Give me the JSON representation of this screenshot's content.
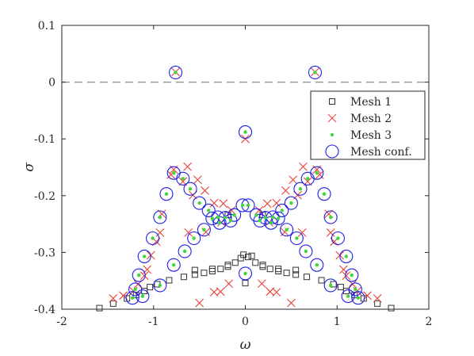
{
  "chart_data": {
    "type": "scatter",
    "xlabel": "ω",
    "ylabel": "σ",
    "xlim": [
      -2,
      2
    ],
    "ylim": [
      -0.4,
      0.1
    ],
    "x_ticks": [
      "-2",
      "-1",
      "0",
      "1",
      "2"
    ],
    "y_ticks": [
      "-0.4",
      "-0.3",
      "-0.2",
      "-0.1",
      "0",
      "0.1"
    ],
    "x_tick_values": [
      -2,
      -1,
      0,
      1,
      2
    ],
    "y_tick_values": [
      -0.4,
      -0.3,
      -0.2,
      -0.1,
      0,
      0.1
    ],
    "reference_line": {
      "y": 0,
      "style": "dashed",
      "color": "#8c8c8c"
    },
    "grid": false,
    "legend_position": "top-right",
    "series": [
      {
        "name": "Mesh 1",
        "marker": "square",
        "color": "#333333",
        "points": [
          [
            -1.59,
            -0.398
          ],
          [
            -1.44,
            -0.39
          ],
          [
            -1.29,
            -0.381
          ],
          [
            -1.19,
            -0.375
          ],
          [
            -1.1,
            -0.368
          ],
          [
            -1.04,
            -0.361
          ],
          [
            -0.96,
            -0.356
          ],
          [
            -0.83,
            -0.349
          ],
          [
            -0.67,
            -0.343
          ],
          [
            -0.55,
            -0.339
          ],
          [
            -0.45,
            -0.336
          ],
          [
            -0.36,
            -0.333
          ],
          [
            -0.27,
            -0.329
          ],
          [
            -0.19,
            -0.325
          ],
          [
            -0.11,
            -0.318
          ],
          [
            -0.05,
            -0.31
          ],
          [
            -0.02,
            -0.304
          ],
          [
            0.03,
            -0.308
          ],
          [
            0.07,
            -0.306
          ],
          [
            -0.55,
            -0.331
          ],
          [
            -0.36,
            -0.329
          ],
          [
            -0.19,
            -0.322
          ],
          [
            0.0,
            -0.354
          ],
          [
            0.19,
            -0.322
          ],
          [
            0.36,
            -0.329
          ],
          [
            0.55,
            -0.331
          ],
          [
            0.11,
            -0.318
          ],
          [
            0.19,
            -0.325
          ],
          [
            0.27,
            -0.329
          ],
          [
            0.36,
            -0.333
          ],
          [
            0.45,
            -0.336
          ],
          [
            0.55,
            -0.339
          ],
          [
            0.67,
            -0.343
          ],
          [
            0.83,
            -0.349
          ],
          [
            0.96,
            -0.356
          ],
          [
            1.04,
            -0.361
          ],
          [
            1.1,
            -0.368
          ],
          [
            1.19,
            -0.375
          ],
          [
            1.29,
            -0.381
          ],
          [
            1.44,
            -0.39
          ],
          [
            1.59,
            -0.398
          ],
          [
            -0.19,
            -0.234
          ],
          [
            0.19,
            -0.234
          ]
        ]
      },
      {
        "name": "Mesh 2",
        "marker": "x",
        "color": "#e8403a",
        "points": [
          [
            0.76,
            0.018
          ],
          [
            -0.76,
            0.018
          ],
          [
            0.0,
            -0.1
          ],
          [
            -0.78,
            -0.154
          ],
          [
            -0.63,
            -0.149
          ],
          [
            -0.81,
            -0.163
          ],
          [
            -0.52,
            -0.172
          ],
          [
            -0.68,
            -0.175
          ],
          [
            -0.44,
            -0.191
          ],
          [
            -0.57,
            -0.199
          ],
          [
            -0.34,
            -0.213
          ],
          [
            -0.24,
            -0.214
          ],
          [
            -0.15,
            -0.226
          ],
          [
            -0.91,
            -0.232
          ],
          [
            -0.93,
            -0.265
          ],
          [
            -0.62,
            -0.265
          ],
          [
            -0.43,
            -0.264
          ],
          [
            -0.97,
            -0.281
          ],
          [
            -1.03,
            -0.305
          ],
          [
            -1.07,
            -0.33
          ],
          [
            -1.1,
            -0.341
          ],
          [
            -1.17,
            -0.356
          ],
          [
            -1.22,
            -0.368
          ],
          [
            -1.33,
            -0.376
          ],
          [
            -1.44,
            -0.381
          ],
          [
            -0.5,
            -0.389
          ],
          [
            -0.34,
            -0.37
          ],
          [
            -0.27,
            -0.369
          ],
          [
            -0.18,
            -0.355
          ],
          [
            0.78,
            -0.154
          ],
          [
            0.63,
            -0.149
          ],
          [
            0.81,
            -0.163
          ],
          [
            0.52,
            -0.172
          ],
          [
            0.68,
            -0.175
          ],
          [
            0.44,
            -0.191
          ],
          [
            0.57,
            -0.199
          ],
          [
            0.34,
            -0.213
          ],
          [
            0.24,
            -0.214
          ],
          [
            0.15,
            -0.226
          ],
          [
            0.91,
            -0.232
          ],
          [
            0.93,
            -0.265
          ],
          [
            0.62,
            -0.265
          ],
          [
            0.43,
            -0.264
          ],
          [
            0.97,
            -0.281
          ],
          [
            1.03,
            -0.305
          ],
          [
            1.07,
            -0.33
          ],
          [
            1.1,
            -0.341
          ],
          [
            1.17,
            -0.356
          ],
          [
            1.22,
            -0.368
          ],
          [
            1.33,
            -0.376
          ],
          [
            1.44,
            -0.381
          ],
          [
            0.5,
            -0.389
          ],
          [
            0.34,
            -0.37
          ],
          [
            0.27,
            -0.369
          ],
          [
            0.18,
            -0.355
          ],
          [
            -0.26,
            -0.247
          ],
          [
            0.26,
            -0.247
          ]
        ]
      },
      {
        "name": "Mesh 3",
        "marker": "dot",
        "color": "#3ed63e",
        "points": [
          [
            -0.76,
            0.017
          ],
          [
            0.76,
            0.017
          ],
          [
            0.0,
            -0.088
          ],
          [
            -0.78,
            -0.16
          ],
          [
            -0.68,
            -0.17
          ],
          [
            -0.6,
            -0.188
          ],
          [
            -0.5,
            -0.213
          ],
          [
            -0.4,
            -0.226
          ],
          [
            -0.3,
            -0.238
          ],
          [
            -0.22,
            -0.239
          ],
          [
            -0.12,
            -0.234
          ],
          [
            -0.03,
            -0.217
          ],
          [
            0.03,
            -0.217
          ],
          [
            -0.86,
            -0.197
          ],
          [
            -0.93,
            -0.238
          ],
          [
            -1.01,
            -0.275
          ],
          [
            -1.1,
            -0.307
          ],
          [
            -1.16,
            -0.34
          ],
          [
            -1.2,
            -0.365
          ],
          [
            -1.23,
            -0.38
          ],
          [
            -1.12,
            -0.377
          ],
          [
            -0.93,
            -0.358
          ],
          [
            -0.78,
            -0.322
          ],
          [
            -0.66,
            -0.298
          ],
          [
            -0.56,
            -0.275
          ],
          [
            -0.45,
            -0.26
          ],
          [
            -0.36,
            -0.24
          ],
          [
            -0.28,
            -0.248
          ],
          [
            -0.16,
            -0.244
          ],
          [
            0.0,
            -0.337
          ],
          [
            0.78,
            -0.16
          ],
          [
            0.68,
            -0.17
          ],
          [
            0.6,
            -0.188
          ],
          [
            0.5,
            -0.213
          ],
          [
            0.4,
            -0.226
          ],
          [
            0.3,
            -0.238
          ],
          [
            0.22,
            -0.239
          ],
          [
            0.12,
            -0.234
          ],
          [
            0.86,
            -0.197
          ],
          [
            0.93,
            -0.238
          ],
          [
            1.01,
            -0.275
          ],
          [
            1.1,
            -0.307
          ],
          [
            1.16,
            -0.34
          ],
          [
            1.2,
            -0.365
          ],
          [
            1.23,
            -0.38
          ],
          [
            1.12,
            -0.377
          ],
          [
            0.93,
            -0.358
          ],
          [
            0.78,
            -0.322
          ],
          [
            0.66,
            -0.298
          ],
          [
            0.56,
            -0.275
          ],
          [
            0.45,
            -0.26
          ],
          [
            0.36,
            -0.24
          ],
          [
            0.28,
            -0.248
          ],
          [
            0.16,
            -0.244
          ]
        ]
      },
      {
        "name": "Mesh conf.",
        "marker": "circle",
        "color": "#1f1fe6",
        "points": [
          [
            -0.76,
            0.017
          ],
          [
            0.76,
            0.017
          ],
          [
            0.0,
            -0.088
          ],
          [
            -0.78,
            -0.16
          ],
          [
            -0.68,
            -0.17
          ],
          [
            -0.6,
            -0.188
          ],
          [
            -0.5,
            -0.213
          ],
          [
            -0.4,
            -0.226
          ],
          [
            -0.3,
            -0.238
          ],
          [
            -0.22,
            -0.239
          ],
          [
            -0.12,
            -0.234
          ],
          [
            -0.03,
            -0.217
          ],
          [
            0.03,
            -0.217
          ],
          [
            -0.86,
            -0.197
          ],
          [
            -0.93,
            -0.238
          ],
          [
            -1.01,
            -0.275
          ],
          [
            -1.1,
            -0.307
          ],
          [
            -1.16,
            -0.34
          ],
          [
            -1.2,
            -0.365
          ],
          [
            -1.23,
            -0.38
          ],
          [
            -1.12,
            -0.377
          ],
          [
            -0.93,
            -0.358
          ],
          [
            -0.78,
            -0.322
          ],
          [
            -0.66,
            -0.298
          ],
          [
            -0.56,
            -0.275
          ],
          [
            -0.45,
            -0.26
          ],
          [
            -0.36,
            -0.24
          ],
          [
            -0.28,
            -0.248
          ],
          [
            -0.16,
            -0.244
          ],
          [
            0.0,
            -0.337
          ],
          [
            0.78,
            -0.16
          ],
          [
            0.68,
            -0.17
          ],
          [
            0.6,
            -0.188
          ],
          [
            0.5,
            -0.213
          ],
          [
            0.4,
            -0.226
          ],
          [
            0.3,
            -0.238
          ],
          [
            0.22,
            -0.239
          ],
          [
            0.12,
            -0.234
          ],
          [
            0.86,
            -0.197
          ],
          [
            0.93,
            -0.238
          ],
          [
            1.01,
            -0.275
          ],
          [
            1.1,
            -0.307
          ],
          [
            1.16,
            -0.34
          ],
          [
            1.2,
            -0.365
          ],
          [
            1.23,
            -0.38
          ],
          [
            1.12,
            -0.377
          ],
          [
            0.93,
            -0.358
          ],
          [
            0.78,
            -0.322
          ],
          [
            0.66,
            -0.298
          ],
          [
            0.56,
            -0.275
          ],
          [
            0.45,
            -0.26
          ],
          [
            0.36,
            -0.24
          ],
          [
            0.28,
            -0.248
          ],
          [
            0.16,
            -0.244
          ]
        ]
      }
    ]
  }
}
